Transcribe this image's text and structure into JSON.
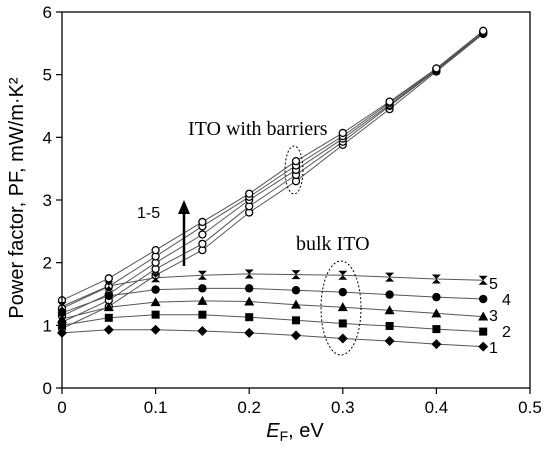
{
  "chart_data": {
    "type": "line",
    "xlabel": "E_F, eV",
    "xlabel_main": "E",
    "xlabel_sub": "F",
    "xlabel_unit": ", eV",
    "ylabel": "Power factor, PF, mW/m·K²",
    "xlim": [
      0,
      0.5
    ],
    "ylim": [
      0,
      6
    ],
    "xticks": [
      0,
      0.1,
      0.2,
      0.3,
      0.4,
      0.5
    ],
    "yticks": [
      0,
      1,
      2,
      3,
      4,
      5,
      6
    ],
    "grid": false,
    "annotations": {
      "barriers": "ITO with barriers",
      "bulk": "bulk ITO",
      "range": "1-5",
      "series_labels": [
        "1",
        "2",
        "3",
        "4",
        "5"
      ]
    },
    "x": [
      0,
      0.05,
      0.1,
      0.15,
      0.2,
      0.25,
      0.3,
      0.35,
      0.4,
      0.45
    ],
    "barrier_series": [
      {
        "values": [
          0.95,
          1.3,
          1.8,
          2.2,
          2.8,
          3.3,
          3.88,
          4.45,
          5.05,
          5.65
        ]
      },
      {
        "values": [
          1.05,
          1.4,
          1.9,
          2.3,
          2.9,
          3.4,
          3.93,
          4.5,
          5.07,
          5.66
        ]
      },
      {
        "values": [
          1.15,
          1.5,
          2.0,
          2.45,
          3.0,
          3.48,
          3.98,
          4.52,
          5.08,
          5.67
        ]
      },
      {
        "values": [
          1.27,
          1.62,
          2.1,
          2.58,
          3.05,
          3.55,
          4.02,
          4.55,
          5.09,
          5.68
        ]
      },
      {
        "values": [
          1.4,
          1.75,
          2.2,
          2.65,
          3.1,
          3.62,
          4.07,
          4.57,
          5.1,
          5.7
        ]
      }
    ],
    "bulk_series": [
      {
        "label": "1",
        "marker": "diamond",
        "values": [
          0.88,
          0.93,
          0.93,
          0.91,
          0.88,
          0.84,
          0.79,
          0.75,
          0.7,
          0.66
        ]
      },
      {
        "label": "2",
        "marker": "square",
        "values": [
          1.0,
          1.12,
          1.17,
          1.17,
          1.13,
          1.08,
          1.03,
          0.99,
          0.94,
          0.9
        ]
      },
      {
        "label": "3",
        "marker": "triangle",
        "values": [
          1.1,
          1.29,
          1.37,
          1.39,
          1.38,
          1.33,
          1.29,
          1.24,
          1.19,
          1.14
        ]
      },
      {
        "label": "4",
        "marker": "circle",
        "values": [
          1.2,
          1.47,
          1.57,
          1.59,
          1.59,
          1.56,
          1.53,
          1.49,
          1.45,
          1.42
        ]
      },
      {
        "label": "5",
        "marker": "hourglass",
        "values": [
          1.3,
          1.63,
          1.76,
          1.8,
          1.82,
          1.81,
          1.8,
          1.77,
          1.74,
          1.72
        ]
      }
    ]
  }
}
